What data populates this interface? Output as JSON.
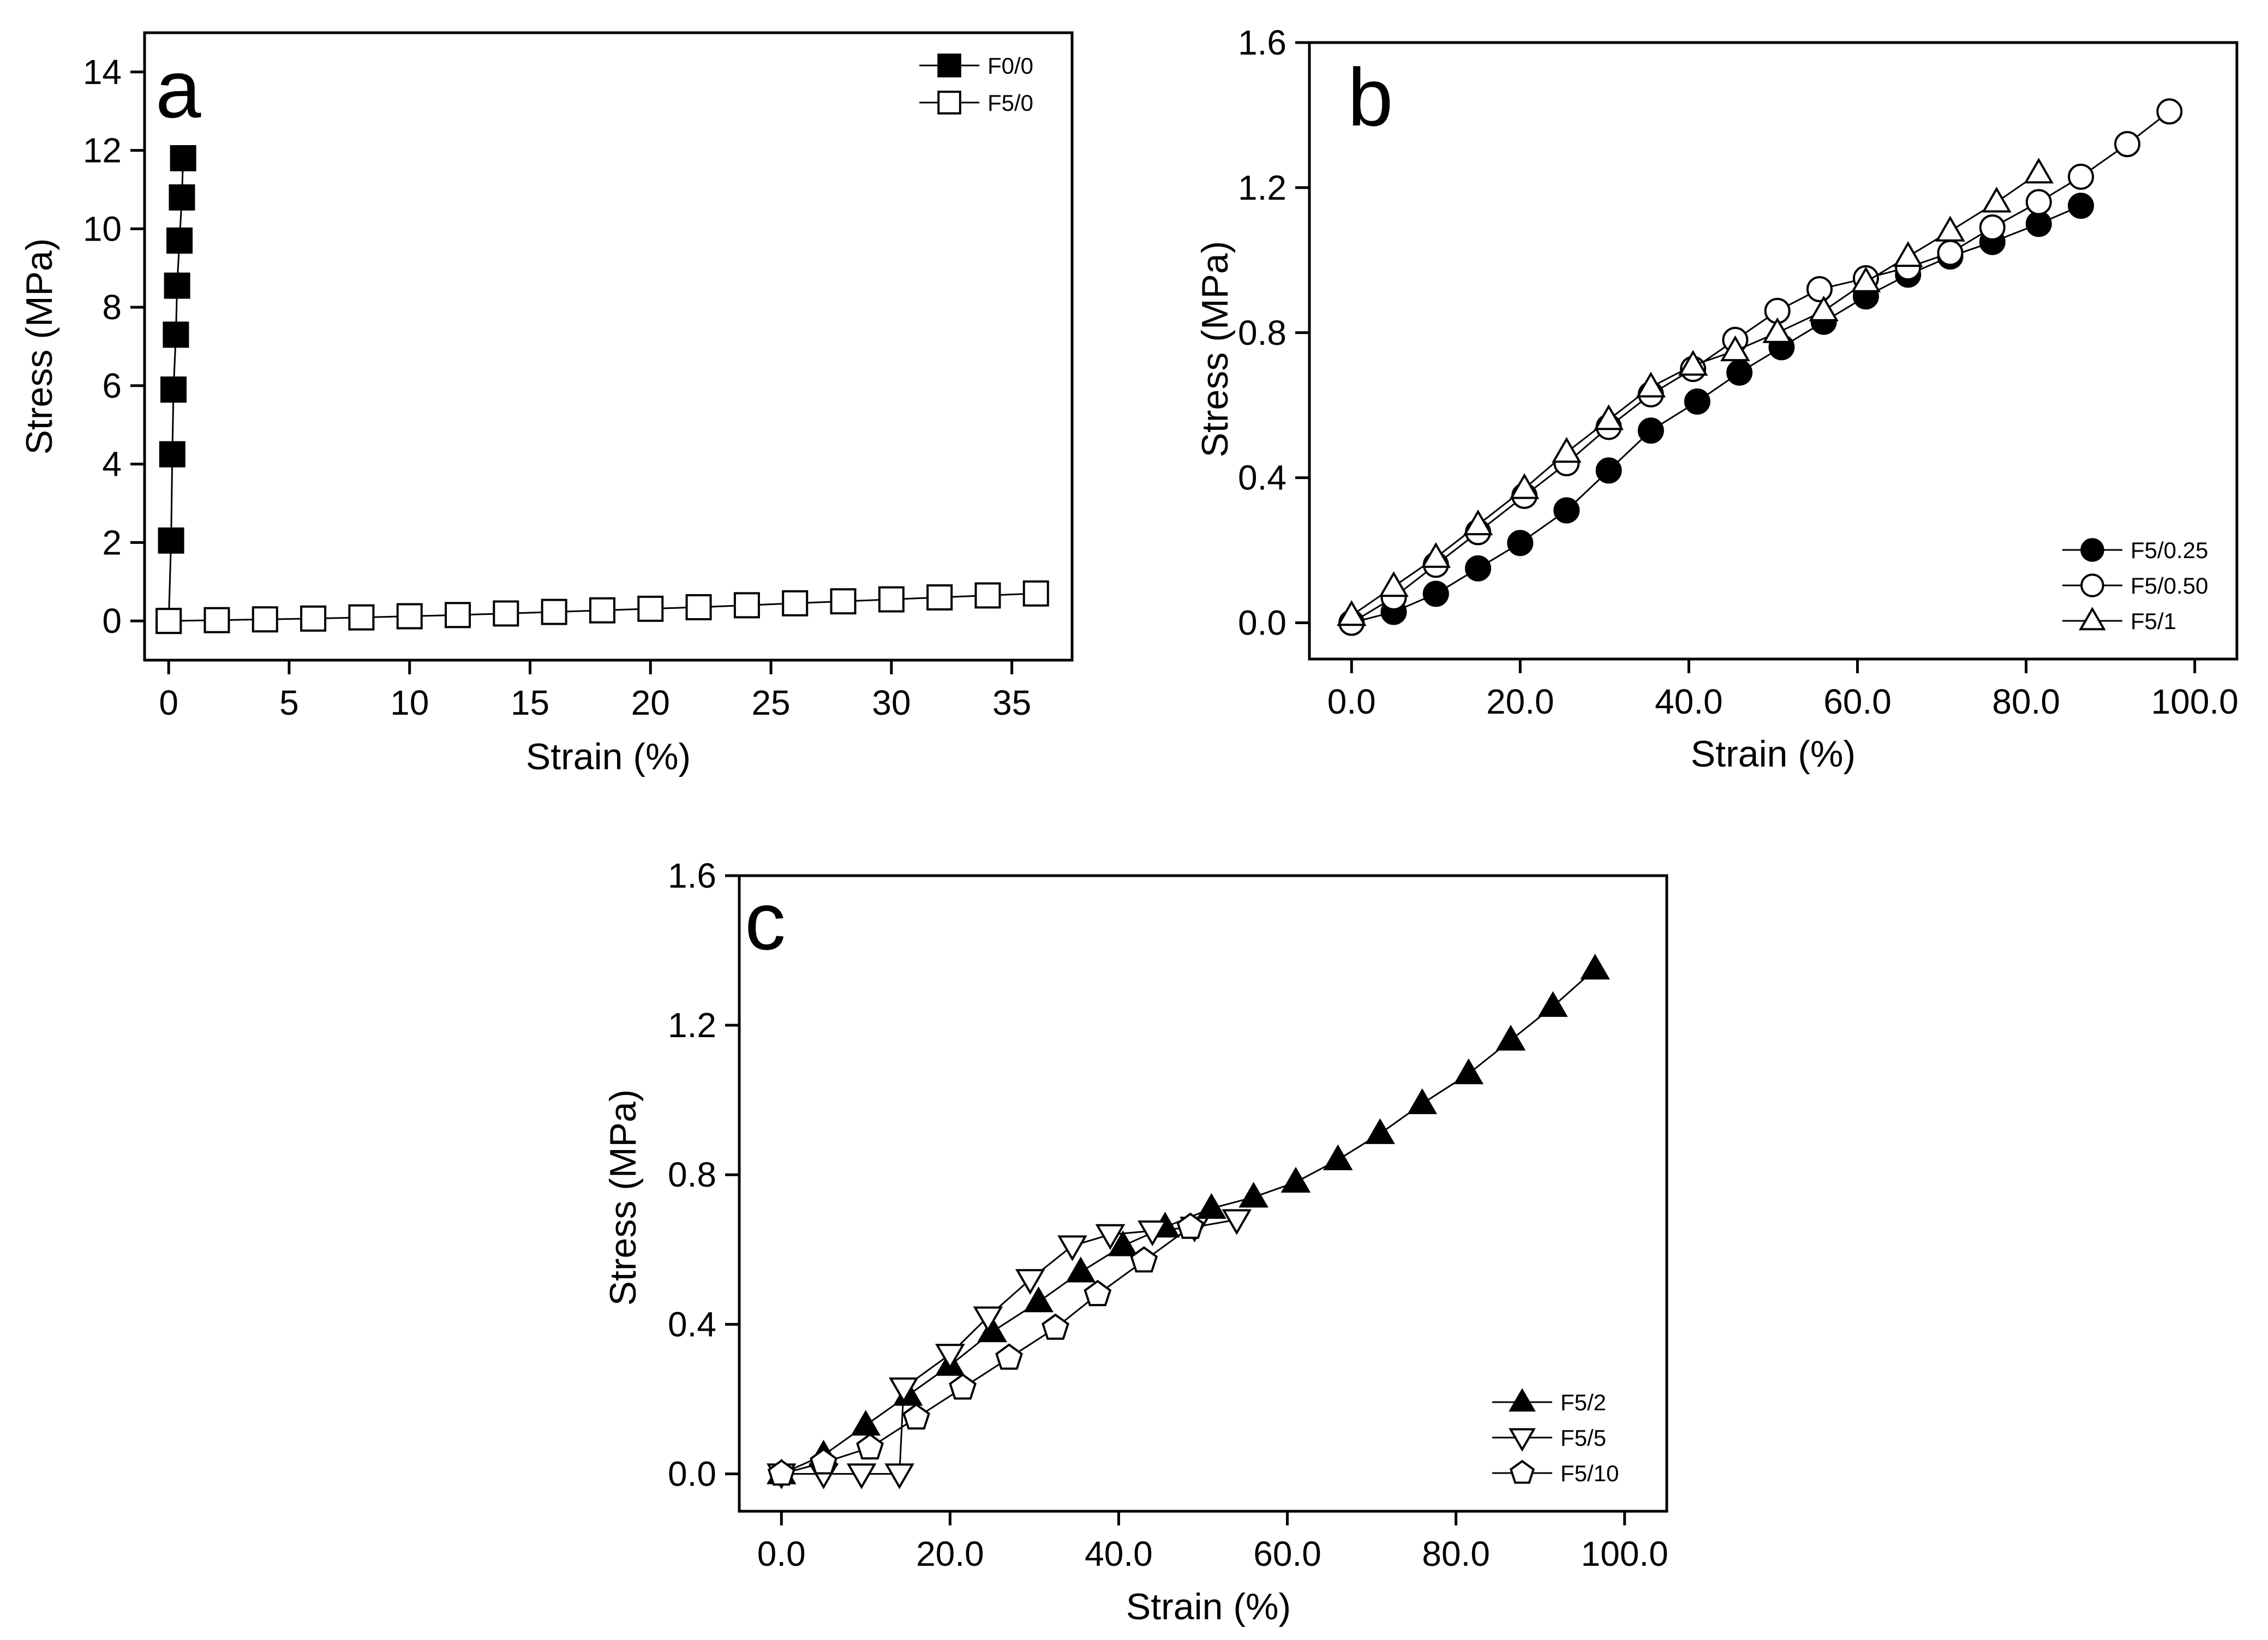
{
  "chart_data": [
    {
      "panel": "a",
      "type": "line",
      "xlabel": "Strain (%)",
      "ylabel": "Stress (MPa)",
      "xlim": [
        -1,
        37.5
      ],
      "ylim": [
        -1,
        15
      ],
      "xticks": [
        0,
        5,
        10,
        15,
        20,
        25,
        30,
        35
      ],
      "yticks": [
        0,
        2,
        4,
        6,
        8,
        10,
        12,
        14
      ],
      "tick_decimals": 0,
      "legend_position": "top-right",
      "series": [
        {
          "name": "F0/0",
          "marker": "square",
          "filled": true,
          "x": [
            0.0,
            0.1,
            0.15,
            0.2,
            0.3,
            0.35,
            0.45,
            0.55,
            0.6
          ],
          "y": [
            0.0,
            2.05,
            4.25,
            5.9,
            7.3,
            8.55,
            9.7,
            10.8,
            11.8
          ]
        },
        {
          "name": "F5/0",
          "marker": "square",
          "filled": false,
          "x": [
            0,
            2,
            4,
            6,
            8,
            10,
            12,
            14,
            16,
            18,
            20,
            22,
            24,
            26,
            28,
            30,
            32,
            34,
            36
          ],
          "y": [
            0.0,
            0.02,
            0.04,
            0.06,
            0.09,
            0.12,
            0.15,
            0.19,
            0.23,
            0.27,
            0.31,
            0.35,
            0.4,
            0.45,
            0.5,
            0.55,
            0.6,
            0.65,
            0.7
          ]
        }
      ]
    },
    {
      "panel": "b",
      "type": "line",
      "xlabel": "Strain (%)",
      "ylabel": "Stress (MPa)",
      "xlim": [
        -5,
        105
      ],
      "ylim": [
        -0.1,
        1.6
      ],
      "xticks": [
        0,
        20,
        40,
        60,
        80,
        100
      ],
      "yticks": [
        0.0,
        0.4,
        0.8,
        1.2,
        1.6
      ],
      "tick_decimals": 1,
      "legend_position": "bottom-right",
      "series": [
        {
          "name": "F5/0.25",
          "marker": "circle",
          "filled": true,
          "x": [
            0,
            5,
            10,
            15,
            20,
            25.5,
            30.5,
            35.5,
            41,
            46,
            51,
            56,
            61,
            66,
            71,
            76,
            81.5,
            86.5
          ],
          "y": [
            0.0,
            0.03,
            0.08,
            0.15,
            0.22,
            0.31,
            0.42,
            0.53,
            0.61,
            0.69,
            0.76,
            0.83,
            0.9,
            0.96,
            1.01,
            1.05,
            1.1,
            1.15
          ]
        },
        {
          "name": "F5/0.50",
          "marker": "circle",
          "filled": false,
          "x": [
            0,
            5,
            10,
            15,
            20.5,
            25.5,
            30.5,
            35.5,
            40.5,
            45.5,
            50.5,
            55.5,
            61,
            66,
            71,
            76,
            81.5,
            86.5,
            92,
            97
          ],
          "y": [
            0.0,
            0.07,
            0.16,
            0.25,
            0.35,
            0.44,
            0.54,
            0.63,
            0.7,
            0.78,
            0.86,
            0.92,
            0.95,
            0.98,
            1.02,
            1.09,
            1.16,
            1.23,
            1.32,
            1.41
          ]
        },
        {
          "name": "F5/1",
          "marker": "triangle-up",
          "filled": false,
          "x": [
            0,
            5,
            10,
            15,
            20.5,
            25.5,
            30.5,
            35.5,
            40.5,
            45.5,
            50.5,
            56,
            61,
            66,
            71,
            76.5,
            81.5
          ],
          "y": [
            0.02,
            0.1,
            0.18,
            0.27,
            0.37,
            0.47,
            0.56,
            0.65,
            0.71,
            0.75,
            0.8,
            0.86,
            0.94,
            1.01,
            1.08,
            1.16,
            1.24
          ]
        }
      ]
    },
    {
      "panel": "c",
      "type": "line",
      "xlabel": "Strain (%)",
      "ylabel": "Stress (MPa)",
      "xlim": [
        -5,
        105
      ],
      "ylim": [
        -0.1,
        1.6
      ],
      "xticks": [
        0,
        20,
        40,
        60,
        80,
        100
      ],
      "yticks": [
        0.0,
        0.4,
        0.8,
        1.2,
        1.6
      ],
      "tick_decimals": 1,
      "legend_position": "bottom-right",
      "series": [
        {
          "name": "F5/2",
          "marker": "triangle-up",
          "filled": true,
          "x": [
            0,
            5,
            10,
            15,
            20,
            25,
            30.5,
            35.5,
            40.5,
            45.5,
            51,
            56,
            61,
            66,
            71,
            76,
            81.5,
            86.5,
            91.5,
            96.5
          ],
          "y": [
            0.0,
            0.05,
            0.13,
            0.21,
            0.29,
            0.38,
            0.46,
            0.54,
            0.61,
            0.66,
            0.71,
            0.74,
            0.78,
            0.84,
            0.91,
            0.99,
            1.07,
            1.16,
            1.25,
            1.35
          ]
        },
        {
          "name": "F5/5",
          "marker": "triangle-down",
          "filled": false,
          "x": [
            0,
            5,
            9.5,
            14,
            14.5,
            20,
            24.5,
            29.5,
            34.5,
            39,
            44,
            49,
            54
          ],
          "y": [
            0.0,
            0.0,
            0.0,
            0.0,
            0.23,
            0.32,
            0.42,
            0.52,
            0.61,
            0.64,
            0.65,
            0.66,
            0.68
          ]
        },
        {
          "name": "F5/10",
          "marker": "pentagon",
          "filled": false,
          "x": [
            0,
            5,
            10.5,
            16,
            21.5,
            27,
            32.5,
            37.5,
            43,
            48.5
          ],
          "y": [
            0.0,
            0.03,
            0.07,
            0.15,
            0.23,
            0.31,
            0.39,
            0.48,
            0.57,
            0.66
          ]
        }
      ]
    }
  ]
}
